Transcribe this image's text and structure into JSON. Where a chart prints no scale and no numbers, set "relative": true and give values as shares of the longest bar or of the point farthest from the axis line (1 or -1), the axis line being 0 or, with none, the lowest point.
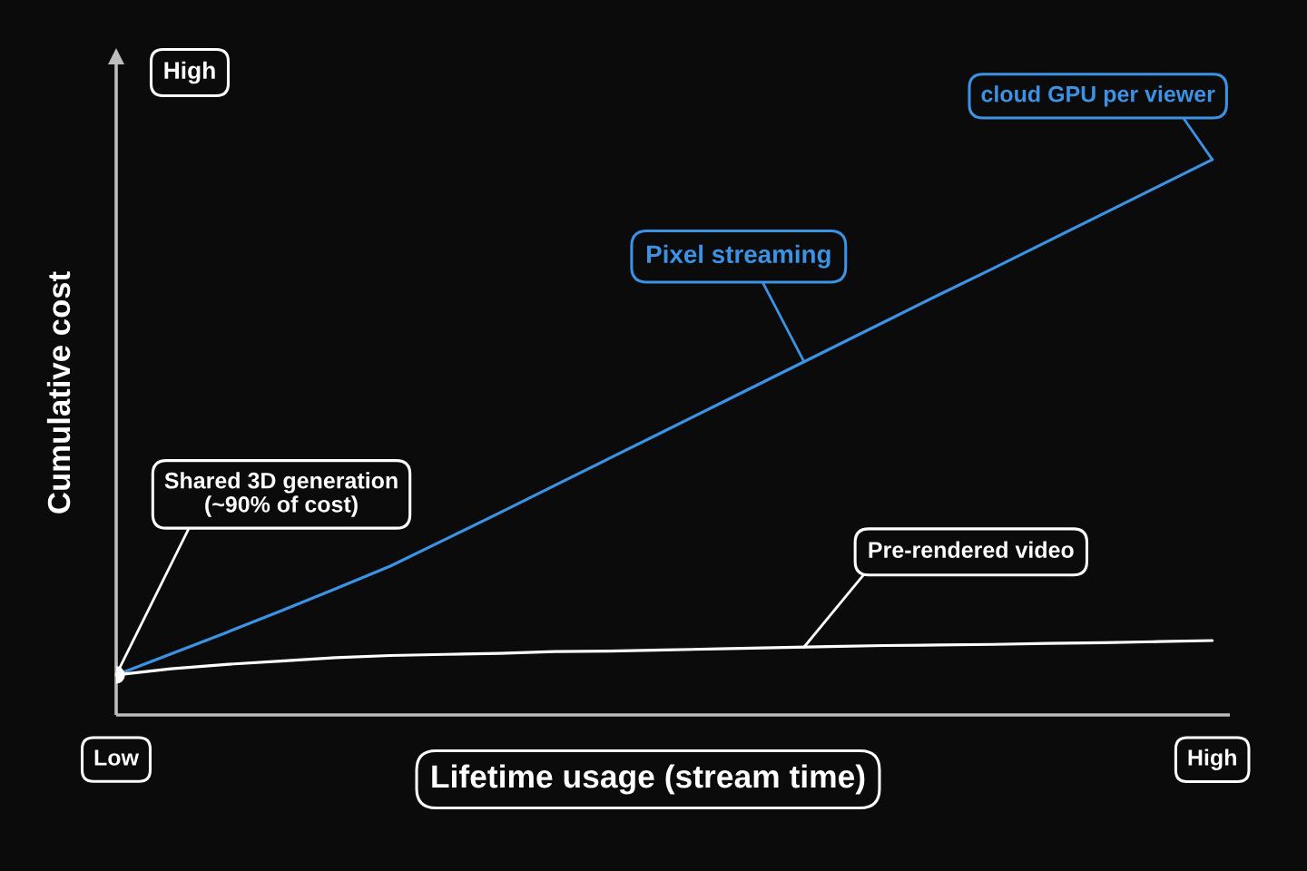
{
  "chart_data": {
    "type": "line",
    "relative": true,
    "xlabel": "Lifetime usage (stream time)",
    "ylabel": "Cumulative cost",
    "categories": [
      "Low",
      null,
      null,
      null,
      null,
      null,
      null,
      null,
      null,
      null,
      null,
      null,
      null,
      null,
      null,
      null,
      null,
      null,
      null,
      null,
      "High"
    ],
    "series": [
      {
        "name": "Pixel streaming",
        "color": "#3c93e6",
        "values": [
          0.072,
          0.11,
          0.148,
          0.187,
          0.227,
          0.268,
          0.316,
          0.364,
          0.413,
          0.462,
          0.511,
          0.56,
          0.609,
          0.658,
          0.707,
          0.756,
          0.804,
          0.853,
          0.902,
          0.951,
          1.0
        ]
      },
      {
        "name": "Pre-rendered video",
        "color": "#ffffff",
        "values": [
          0.072,
          0.083,
          0.091,
          0.097,
          0.103,
          0.107,
          0.109,
          0.111,
          0.114,
          0.115,
          0.117,
          0.119,
          0.121,
          0.123,
          0.125,
          0.126,
          0.127,
          0.129,
          0.13,
          0.132,
          0.134
        ]
      },
      {
        "type": "scatter",
        "color": "#ffffff",
        "marker": "circle",
        "x": [
          "Low"
        ],
        "values": [
          0.072
        ]
      }
    ],
    "annotations": [
      "High",
      {
        "text": "cloud GPU per viewer",
        "x": "High",
        "y": 1.0
      },
      {
        "text": "Shared 3D generation\n(~90% of cost)",
        "x": "Low",
        "y": 0.072
      }
    ]
  }
}
